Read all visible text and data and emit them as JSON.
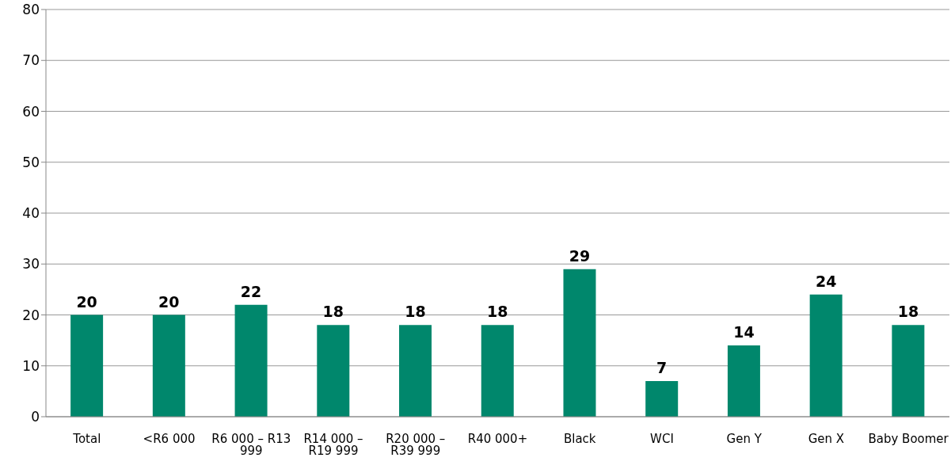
{
  "chart_data": {
    "type": "bar",
    "categories": [
      "Total",
      "<R6 000",
      "R6 000 – R13 999",
      "R14 000 – R19 999",
      "R20 000 – R39 999",
      "R40 000+",
      "Black",
      "WCI",
      "Gen Y",
      "Gen X",
      "Baby Boomer"
    ],
    "values": [
      20,
      20,
      22,
      18,
      18,
      18,
      29,
      7,
      14,
      24,
      18
    ],
    "color": "#00876c",
    "ylim": [
      0,
      80
    ],
    "yticks": [
      0,
      10,
      20,
      30,
      40,
      50,
      60,
      70,
      80
    ],
    "grid": "y",
    "data_labels": true
  }
}
